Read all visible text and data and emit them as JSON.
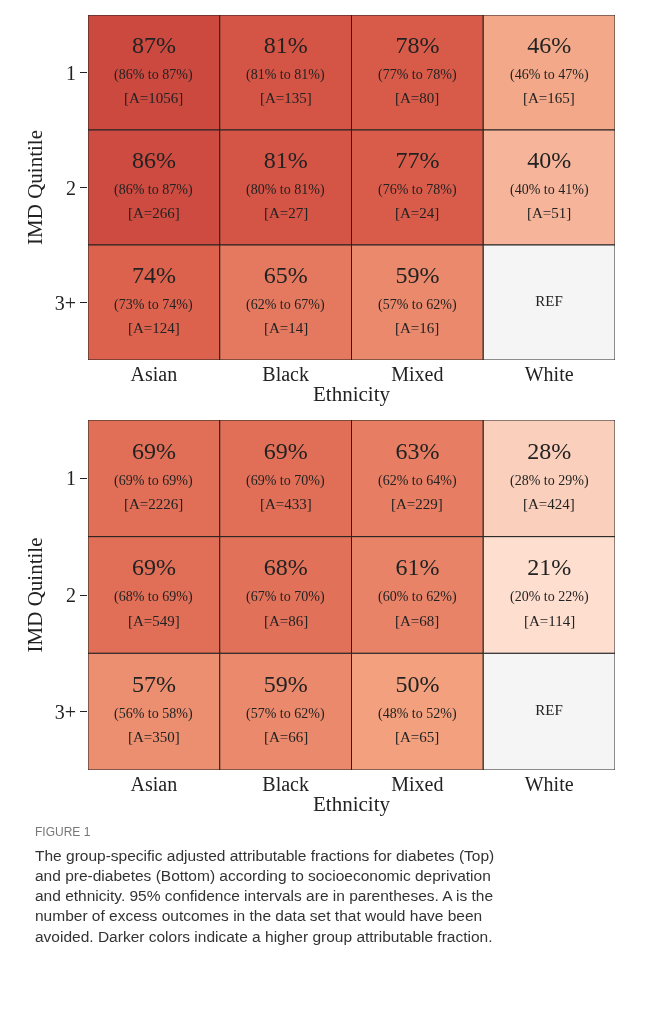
{
  "chart_data": [
    {
      "type": "heatmap",
      "xlabel": "Ethnicity",
      "ylabel": "IMD Quintile",
      "categories": [
        "Asian",
        "Black",
        "Mixed",
        "White"
      ],
      "y_categories": [
        "1",
        "2",
        "3+"
      ],
      "cells": [
        [
          87,
          81,
          78,
          46
        ],
        [
          86,
          81,
          77,
          40
        ],
        [
          74,
          65,
          59,
          null
        ]
      ],
      "cell_labels": [
        [
          "87%",
          "81%",
          "78%",
          "46%"
        ],
        [
          "86%",
          "81%",
          "77%",
          "40%"
        ],
        [
          "74%",
          "65%",
          "59%",
          "REF"
        ]
      ],
      "annotations": [
        "(86% to 87%)\n[A=1056]",
        "(81% to 81%)\n[A=135]",
        "(77% to 78%)\n[A=80]",
        "(46% to 47%)\n[A=165]",
        "(86% to 87%)\n[A=266]",
        "(80% to 81%)\n[A=27]",
        "(76% to 78%)\n[A=24]",
        "(40% to 41%)\n[A=51]",
        "(73% to 74%)\n[A=124]",
        "(62% to 67%)\n[A=14]",
        "(57% to 62%)\n[A=16]"
      ]
    },
    {
      "type": "heatmap",
      "xlabel": "Ethnicity",
      "ylabel": "IMD Quintile",
      "categories": [
        "Asian",
        "Black",
        "Mixed",
        "White"
      ],
      "y_categories": [
        "1",
        "2",
        "3+"
      ],
      "cells": [
        [
          69,
          69,
          63,
          28
        ],
        [
          69,
          68,
          61,
          21
        ],
        [
          57,
          59,
          50,
          null
        ]
      ],
      "cell_labels": [
        [
          "69%",
          "69%",
          "63%",
          "28%"
        ],
        [
          "69%",
          "68%",
          "61%",
          "21%"
        ],
        [
          "57%",
          "59%",
          "50%",
          "REF"
        ]
      ],
      "annotations": [
        "(69% to 69%)\n[A=2226]",
        "(69% to 70%)\n[A=433]",
        "(62% to 64%)\n[A=229]",
        "(28% to 29%)\n[A=424]",
        "(68% to 69%)\n[A=549]",
        "(67% to 70%)\n[A=86]",
        "(60% to 62%)\n[A=68]",
        "(20% to 22%)\n[A=114]",
        "(56% to 58%)\n[A=350]",
        "(57% to 62%)\n[A=66]",
        "(48% to 52%)\n[A=65]",
        "FIGURE 1",
        "The group-specific adjusted attributable fractions for diabetes (Top)\nand pre-diabetes (Bottom) according to socioeconomic deprivation\nand ethnicity. 95% confidence intervals are in parentheses. A is the\nnumber of excess outcomes in the data set that would have been\navoided. Darker colors indicate a higher group attributable fraction."
      ]
    }
  ]
}
